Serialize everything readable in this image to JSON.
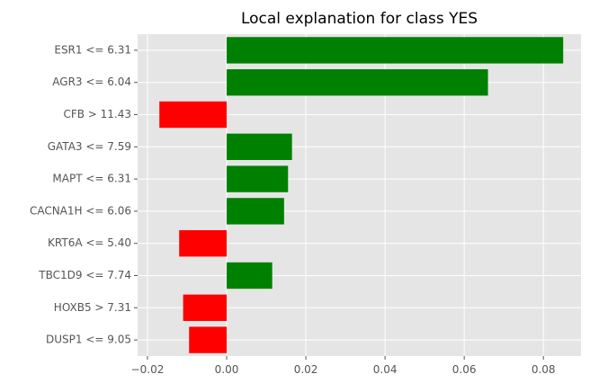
{
  "chart_data": {
    "type": "bar",
    "orientation": "horizontal",
    "title": "Local explanation for class YES",
    "xlabel": "",
    "ylabel": "",
    "categories": [
      "ESR1 <= 6.31",
      "AGR3 <= 6.04",
      "CFB > 11.43",
      "GATA3 <= 7.59",
      "MAPT <= 6.31",
      "CACNA1H <= 6.06",
      "KRT6A <= 5.40",
      "TBC1D9 <= 7.74",
      "HOXB5 > 7.31",
      "DUSP1 <= 9.05"
    ],
    "values": [
      0.085,
      0.066,
      -0.017,
      0.0165,
      0.0155,
      0.0145,
      -0.012,
      0.0115,
      -0.011,
      -0.0095
    ],
    "xlim": [
      -0.0225,
      0.0895
    ],
    "xticks": [
      -0.02,
      0.0,
      0.02,
      0.04,
      0.06,
      0.08
    ],
    "xtick_labels": [
      "−0.02",
      "0.00",
      "0.02",
      "0.04",
      "0.06",
      "0.08"
    ],
    "grid": true,
    "colors": {
      "positive": "#008000",
      "negative": "#ff0000",
      "background": "#e5e5e5",
      "grid": "#ffffff"
    }
  }
}
